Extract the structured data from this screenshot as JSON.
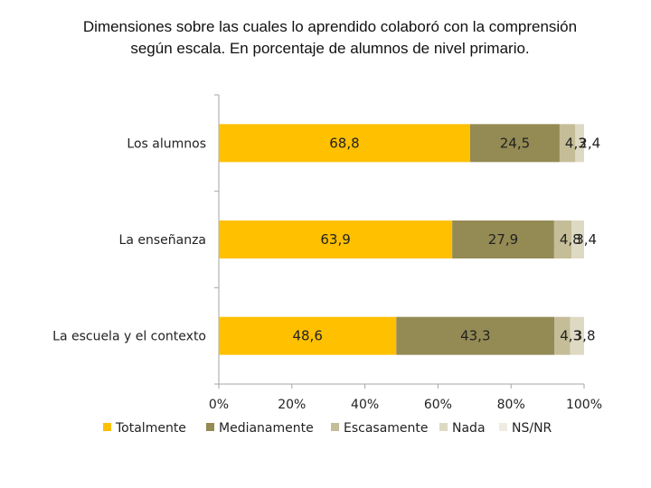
{
  "chart_data": {
    "type": "bar",
    "orientation": "horizontal",
    "stacked": true,
    "title": "Dimensiones sobre las cuales lo aprendido colaboró con la comprensión según escala. En porcentaje de alumnos de nivel primario.",
    "title_lines": [
      "Dimensiones sobre las cuales lo aprendido colaboró con la comprensión",
      "según escala. En porcentaje de alumnos de nivel primario."
    ],
    "categories": [
      "Los alumnos",
      "La enseñanza",
      "La escuela y el contexto"
    ],
    "series": [
      {
        "name": "Totalmente",
        "color": "#FFC000",
        "values": [
          68.8,
          63.9,
          48.6
        ],
        "labels": [
          "68,8",
          "63,9",
          "48,6"
        ]
      },
      {
        "name": "Medianamente",
        "color": "#948A54",
        "values": [
          24.5,
          27.9,
          43.3
        ],
        "labels": [
          "24,5",
          "27,9",
          "43,3"
        ]
      },
      {
        "name": "Escasamente",
        "color": "#C4BD97",
        "values": [
          4.3,
          4.8,
          4.3
        ],
        "labels": [
          "4,3",
          "4,8",
          "4,3"
        ]
      },
      {
        "name": "Nada",
        "color": "#DDD9C3",
        "values": [
          2.4,
          3.4,
          3.8
        ],
        "labels": [
          "2,4",
          "3,4",
          "3,8"
        ]
      },
      {
        "name": "NS/NR",
        "color": "#EEECE1",
        "values": [
          0,
          0,
          0
        ],
        "labels": [
          "",
          "",
          ""
        ]
      }
    ],
    "x_ticks": [
      "0%",
      "20%",
      "40%",
      "60%",
      "80%",
      "100%"
    ],
    "xlim": [
      0,
      100
    ],
    "legend_position": "bottom",
    "grid": false
  }
}
